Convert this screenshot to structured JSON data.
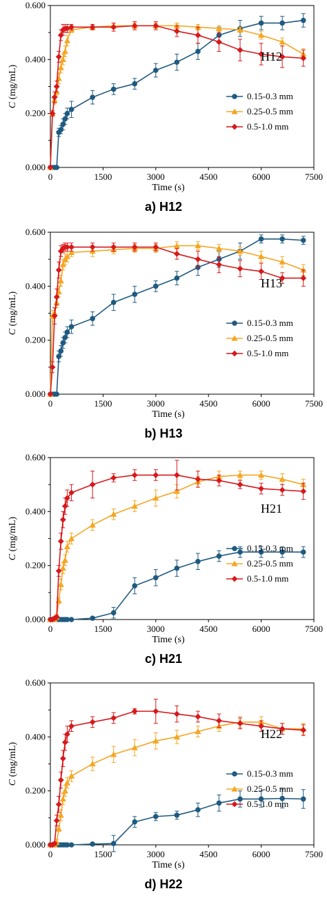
{
  "colors": {
    "s1": "#1f5a80",
    "s2": "#f5a623",
    "s3": "#d7191c"
  },
  "markers": [
    "circle",
    "triangle",
    "diamond"
  ],
  "chart_data": [
    {
      "type": "line",
      "title": "H12",
      "caption": "a) H12",
      "xlabel": "Time (s)",
      "ylabel_italic": "C",
      "ylabel_unit": " (mg/mL)",
      "xlim": [
        0,
        7500
      ],
      "ylim": [
        0,
        0.6
      ],
      "xticks": [
        "0",
        "1500",
        "3000",
        "4500",
        "6000",
        "7500"
      ],
      "yticks": [
        "0.000",
        "0.200",
        "0.400",
        "0.600"
      ],
      "legend_position": "right",
      "series": [
        {
          "name": "0.15-0.3 mm",
          "x": [
            0,
            60,
            120,
            180,
            240,
            300,
            360,
            420,
            480,
            600,
            1200,
            1800,
            2400,
            3000,
            3600,
            4200,
            4800,
            5400,
            6000,
            6600,
            7200
          ],
          "y": [
            0,
            0,
            0,
            0,
            0.13,
            0.14,
            0.16,
            0.18,
            0.2,
            0.215,
            0.26,
            0.29,
            0.31,
            0.36,
            0.39,
            0.43,
            0.49,
            0.515,
            0.535,
            0.535,
            0.545
          ],
          "err": [
            0,
            0,
            0,
            0,
            0.015,
            0.015,
            0.02,
            0.02,
            0.02,
            0.03,
            0.025,
            0.02,
            0.02,
            0.025,
            0.03,
            0.03,
            0.03,
            0.03,
            0.025,
            0.025,
            0.025
          ]
        },
        {
          "name": "0.25-0.5 mm",
          "x": [
            0,
            60,
            120,
            180,
            240,
            300,
            360,
            420,
            480,
            600,
            1200,
            1800,
            2400,
            3000,
            3600,
            4200,
            4800,
            5400,
            6000,
            6600,
            7200
          ],
          "y": [
            0,
            0.2,
            0.25,
            0.28,
            0.33,
            0.37,
            0.4,
            0.43,
            0.47,
            0.51,
            0.52,
            0.525,
            0.525,
            0.525,
            0.525,
            0.52,
            0.515,
            0.51,
            0.49,
            0.465,
            0.42
          ],
          "err": [
            0,
            0.01,
            0.015,
            0.015,
            0.02,
            0.02,
            0.02,
            0.02,
            0.02,
            0.01,
            0.01,
            0.01,
            0.01,
            0.01,
            0.01,
            0.01,
            0.01,
            0.01,
            0.015,
            0.015,
            0.02
          ]
        },
        {
          "name": "0.5-1.0 mm",
          "x": [
            0,
            60,
            120,
            180,
            240,
            300,
            360,
            420,
            480,
            600,
            1200,
            1800,
            2400,
            3000,
            3600,
            4200,
            4800,
            5400,
            6000,
            6600,
            7200
          ],
          "y": [
            0,
            0.2,
            0.26,
            0.3,
            0.41,
            0.49,
            0.51,
            0.515,
            0.515,
            0.52,
            0.52,
            0.52,
            0.525,
            0.525,
            0.505,
            0.49,
            0.465,
            0.435,
            0.42,
            0.41,
            0.405
          ],
          "err": [
            0,
            0.01,
            0.02,
            0.02,
            0.02,
            0.02,
            0.02,
            0.015,
            0.015,
            0.01,
            0.01,
            0.015,
            0.015,
            0.015,
            0.02,
            0.03,
            0.035,
            0.04,
            0.04,
            0.04,
            0.03
          ]
        }
      ]
    },
    {
      "type": "line",
      "title": "H13",
      "caption": "b) H13",
      "xlabel": "Time (s)",
      "ylabel_italic": "C",
      "ylabel_unit": " (mg/mL)",
      "xlim": [
        0,
        7500
      ],
      "ylim": [
        0,
        0.6
      ],
      "xticks": [
        "0",
        "1500",
        "3000",
        "4500",
        "6000",
        "7500"
      ],
      "yticks": [
        "0.000",
        "0.200",
        "0.400",
        "0.600"
      ],
      "legend_position": "right",
      "series": [
        {
          "name": "0.15-0.3 mm",
          "x": [
            0,
            60,
            120,
            180,
            240,
            300,
            360,
            420,
            480,
            600,
            1200,
            1800,
            2400,
            3000,
            3600,
            4200,
            4800,
            5400,
            6000,
            6600,
            7200
          ],
          "y": [
            0,
            0,
            0,
            0,
            0.14,
            0.16,
            0.19,
            0.21,
            0.23,
            0.25,
            0.28,
            0.34,
            0.37,
            0.4,
            0.43,
            0.47,
            0.5,
            0.53,
            0.575,
            0.575,
            0.57
          ],
          "err": [
            0,
            0,
            0,
            0,
            0.02,
            0.02,
            0.02,
            0.02,
            0.02,
            0.025,
            0.025,
            0.03,
            0.03,
            0.02,
            0.025,
            0.03,
            0.03,
            0.03,
            0.015,
            0.015,
            0.015
          ]
        },
        {
          "name": "0.25-0.5 mm",
          "x": [
            0,
            60,
            120,
            180,
            240,
            300,
            360,
            420,
            480,
            600,
            1200,
            1800,
            2400,
            3000,
            3600,
            4200,
            4800,
            5400,
            6000,
            6600,
            7200
          ],
          "y": [
            0,
            0.29,
            0.3,
            0.34,
            0.38,
            0.42,
            0.48,
            0.5,
            0.51,
            0.525,
            0.53,
            0.535,
            0.54,
            0.54,
            0.55,
            0.55,
            0.54,
            0.53,
            0.51,
            0.49,
            0.46
          ],
          "err": [
            0,
            0.02,
            0.02,
            0.02,
            0.02,
            0.02,
            0.02,
            0.02,
            0.02,
            0.015,
            0.02,
            0.015,
            0.015,
            0.015,
            0.015,
            0.015,
            0.015,
            0.015,
            0.02,
            0.02,
            0.02
          ]
        },
        {
          "name": "0.5-1.0 mm",
          "x": [
            0,
            60,
            120,
            180,
            240,
            300,
            360,
            420,
            480,
            600,
            1200,
            1800,
            2400,
            3000,
            3600,
            4200,
            4800,
            5400,
            6000,
            6600,
            7200
          ],
          "y": [
            0,
            0.1,
            0.29,
            0.36,
            0.46,
            0.53,
            0.54,
            0.545,
            0.545,
            0.545,
            0.545,
            0.545,
            0.545,
            0.545,
            0.52,
            0.5,
            0.48,
            0.465,
            0.455,
            0.43,
            0.43
          ],
          "err": [
            0,
            0.02,
            0.03,
            0.03,
            0.03,
            0.02,
            0.015,
            0.015,
            0.015,
            0.015,
            0.015,
            0.015,
            0.015,
            0.015,
            0.02,
            0.03,
            0.03,
            0.03,
            0.03,
            0.02,
            0.03
          ]
        }
      ]
    },
    {
      "type": "line",
      "title": "H21",
      "caption": "c) H21",
      "xlabel": "Time (s)",
      "ylabel_italic": "C",
      "ylabel_unit": " (mg/mL)",
      "xlim": [
        0,
        7500
      ],
      "ylim": [
        0,
        0.6
      ],
      "xticks": [
        "0",
        "1500",
        "3000",
        "4500",
        "6000",
        "7500"
      ],
      "yticks": [
        "0.000",
        "0.200",
        "0.400",
        "0.600"
      ],
      "legend_position": "right",
      "series": [
        {
          "name": "0.15-0.3 mm",
          "x": [
            0,
            60,
            120,
            180,
            240,
            300,
            360,
            420,
            480,
            600,
            1200,
            1800,
            2400,
            3000,
            3600,
            4200,
            4800,
            5400,
            6000,
            6600,
            7200
          ],
          "y": [
            0,
            0,
            0,
            0,
            0,
            0,
            0,
            0,
            0,
            0,
            0.005,
            0.025,
            0.125,
            0.155,
            0.19,
            0.215,
            0.235,
            0.25,
            0.25,
            0.25,
            0.25
          ],
          "err": [
            0,
            0,
            0,
            0,
            0,
            0,
            0,
            0,
            0,
            0,
            0.005,
            0.02,
            0.03,
            0.03,
            0.03,
            0.03,
            0.02,
            0.02,
            0.02,
            0.02,
            0.02
          ]
        },
        {
          "name": "0.25-0.5 mm",
          "x": [
            0,
            60,
            120,
            180,
            240,
            300,
            360,
            420,
            480,
            600,
            1200,
            1800,
            2400,
            3000,
            3600,
            4200,
            4800,
            5400,
            6000,
            6600,
            7200
          ],
          "y": [
            0,
            0,
            0,
            0.01,
            0.07,
            0.13,
            0.19,
            0.22,
            0.27,
            0.3,
            0.35,
            0.39,
            0.42,
            0.45,
            0.475,
            0.51,
            0.53,
            0.535,
            0.535,
            0.52,
            0.5
          ],
          "err": [
            0,
            0,
            0,
            0.01,
            0.01,
            0.02,
            0.02,
            0.02,
            0.02,
            0.02,
            0.02,
            0.02,
            0.02,
            0.03,
            0.025,
            0.02,
            0.02,
            0.015,
            0.015,
            0.02,
            0.02
          ]
        },
        {
          "name": "0.5-1.0 mm",
          "x": [
            0,
            60,
            120,
            180,
            240,
            300,
            360,
            420,
            480,
            600,
            1200,
            1800,
            2400,
            3000,
            3600,
            4200,
            4800,
            5400,
            6000,
            6600,
            7200
          ],
          "y": [
            0,
            0,
            0.005,
            0.01,
            0.18,
            0.29,
            0.37,
            0.42,
            0.45,
            0.47,
            0.5,
            0.525,
            0.535,
            0.535,
            0.535,
            0.52,
            0.515,
            0.5,
            0.485,
            0.48,
            0.475
          ],
          "err": [
            0,
            0,
            0.005,
            0.005,
            0.02,
            0.03,
            0.03,
            0.03,
            0.03,
            0.03,
            0.05,
            0.015,
            0.02,
            0.02,
            0.055,
            0.03,
            0.02,
            0.015,
            0.02,
            0.02,
            0.03
          ]
        }
      ]
    },
    {
      "type": "line",
      "title": "H22",
      "caption": "d) H22",
      "xlabel": "Time (s)",
      "ylabel_italic": "C",
      "ylabel_unit": " (mg/mL)",
      "xlim": [
        0,
        7500
      ],
      "ylim": [
        0,
        0.6
      ],
      "xticks": [
        "0",
        "1500",
        "3000",
        "4500",
        "6000",
        "7500"
      ],
      "yticks": [
        "0.000",
        "0.200",
        "0.400",
        "0.600"
      ],
      "legend_position": "right",
      "series": [
        {
          "name": "0.15-0.3 mm",
          "x": [
            0,
            60,
            120,
            180,
            240,
            300,
            360,
            420,
            480,
            600,
            1200,
            1800,
            2400,
            3000,
            3600,
            4200,
            4800,
            5400,
            6000,
            6600,
            7200
          ],
          "y": [
            0,
            0,
            0,
            0,
            0,
            0,
            0,
            0,
            0,
            0,
            0.003,
            0.005,
            0.085,
            0.105,
            0.11,
            0.13,
            0.155,
            0.17,
            0.17,
            0.172,
            0.17
          ],
          "err": [
            0,
            0,
            0,
            0,
            0,
            0,
            0,
            0,
            0,
            0,
            0.005,
            0.03,
            0.02,
            0.015,
            0.015,
            0.025,
            0.03,
            0.03,
            0.03,
            0.035,
            0.035
          ]
        },
        {
          "name": "0.25-0.5 mm",
          "x": [
            0,
            60,
            120,
            180,
            240,
            300,
            360,
            420,
            480,
            600,
            1200,
            1800,
            2400,
            3000,
            3600,
            4200,
            4800,
            5400,
            6000,
            6600,
            7200
          ],
          "y": [
            0,
            0,
            0,
            0.01,
            0.06,
            0.11,
            0.17,
            0.2,
            0.23,
            0.255,
            0.3,
            0.335,
            0.36,
            0.385,
            0.4,
            0.42,
            0.44,
            0.455,
            0.455,
            0.43,
            0.43
          ],
          "err": [
            0,
            0,
            0,
            0.01,
            0.01,
            0.02,
            0.02,
            0.02,
            0.02,
            0.02,
            0.025,
            0.03,
            0.03,
            0.03,
            0.025,
            0.02,
            0.02,
            0.02,
            0.02,
            0.02,
            0.02
          ]
        },
        {
          "name": "0.5-1.0 mm",
          "x": [
            0,
            60,
            120,
            180,
            240,
            300,
            360,
            420,
            480,
            600,
            1200,
            1800,
            2400,
            3000,
            3600,
            4200,
            4800,
            5400,
            6000,
            6600,
            7200
          ],
          "y": [
            0,
            0,
            0.005,
            0.09,
            0.15,
            0.24,
            0.32,
            0.38,
            0.41,
            0.44,
            0.455,
            0.47,
            0.495,
            0.495,
            0.485,
            0.475,
            0.46,
            0.45,
            0.44,
            0.43,
            0.425
          ],
          "err": [
            0,
            0,
            0.005,
            0.02,
            0.03,
            0.03,
            0.03,
            0.03,
            0.03,
            0.02,
            0.02,
            0.02,
            0.01,
            0.045,
            0.03,
            0.02,
            0.025,
            0.02,
            0.02,
            0.02,
            0.02
          ]
        }
      ]
    }
  ]
}
